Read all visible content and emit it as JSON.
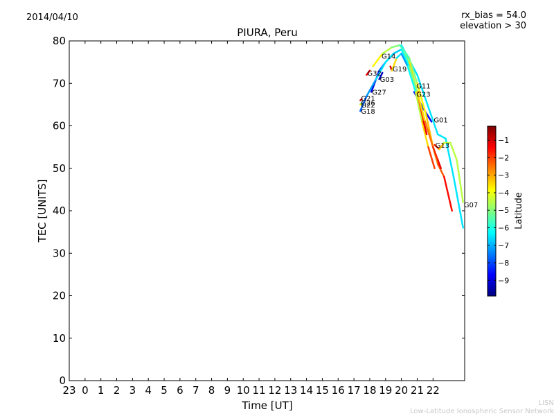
{
  "header": {
    "date": "2014/04/10",
    "rx_bias": "rx_bias = 54.0",
    "elevation": "elevation > 30"
  },
  "credit": {
    "line1": "LISN",
    "line2": "Low-Latitude Ionospheric Sensor Network"
  },
  "chart_data": {
    "type": "line",
    "title": "PIURA, Peru",
    "xlabel": "Time [UT]",
    "ylabel": "TEC [UNITS]",
    "xlim": [
      -1,
      24
    ],
    "ylim": [
      0,
      80
    ],
    "x_ticks": [
      -1,
      0,
      1,
      2,
      3,
      4,
      5,
      6,
      7,
      8,
      9,
      10,
      11,
      12,
      13,
      14,
      15,
      16,
      17,
      18,
      19,
      20,
      21,
      22
    ],
    "x_tick_labels": [
      "23",
      "0",
      "1",
      "2",
      "3",
      "4",
      "5",
      "6",
      "7",
      "8",
      "9",
      "10",
      "11",
      "12",
      "13",
      "14",
      "15",
      "16",
      "17",
      "18",
      "19",
      "20",
      "21",
      "22"
    ],
    "y_ticks": [
      0,
      10,
      20,
      30,
      40,
      50,
      60,
      70,
      80
    ],
    "colorbar": {
      "label": "Latitude",
      "range": [
        -9.9,
        -0.2
      ],
      "ticks": [
        -1,
        -2,
        -3,
        -4,
        -5,
        -6,
        -7,
        -8,
        -9
      ],
      "tick_labels": [
        "−1",
        "−2",
        "−3",
        "−4",
        "−5",
        "−6",
        "−7",
        "−8",
        "−9"
      ],
      "colors": [
        "#00007f",
        "#0000ff",
        "#0080ff",
        "#00ffff",
        "#80ff80",
        "#ffff00",
        "#ff8000",
        "#ff0000",
        "#7f0000"
      ]
    },
    "series": [
      {
        "name": "G01",
        "label_at": [
          22.0,
          61.5
        ],
        "points": [
          [
            20.8,
            68,
            -8.0
          ],
          [
            21.4,
            64,
            -8.5
          ],
          [
            21.9,
            61,
            -9.0
          ]
        ]
      },
      {
        "name": "G07",
        "label_at": [
          23.9,
          41.5
        ],
        "points": [
          [
            20.0,
            79,
            -6.5
          ],
          [
            21.0,
            72,
            -6.5
          ],
          [
            22.3,
            58,
            -6.5
          ],
          [
            22.8,
            57,
            -6.5
          ],
          [
            23.3,
            48,
            -6.5
          ],
          [
            23.9,
            36,
            -6.5
          ]
        ]
      },
      {
        "name": "G13",
        "label_at": [
          22.1,
          55.5
        ],
        "points": [
          [
            22.1,
            55.5,
            -1.6
          ],
          [
            22.4,
            54.5,
            -2.0
          ],
          [
            22.7,
            56,
            -4.5
          ],
          [
            23.1,
            56,
            -4.5
          ],
          [
            23.5,
            52,
            -4.5
          ],
          [
            23.9,
            42,
            -4.5
          ]
        ]
      },
      {
        "name": "G11",
        "label_at": [
          20.9,
          69.5
        ],
        "points": [
          [
            20.5,
            73,
            -8.5
          ],
          [
            20.9,
            69.5,
            -8.0
          ]
        ]
      },
      {
        "name": "G23",
        "label_at": [
          20.9,
          67.5
        ],
        "points": [
          [
            20.9,
            67.5,
            -1.0
          ],
          [
            21.1,
            68,
            -1.0
          ]
        ]
      },
      {
        "name": "G14",
        "label_at": [
          18.7,
          76.5
        ],
        "points": [
          [
            18.2,
            74,
            -3.5
          ],
          [
            18.8,
            77,
            -4.0
          ],
          [
            19.4,
            78.5,
            -5.0
          ],
          [
            19.9,
            79,
            -5.0
          ],
          [
            20.5,
            76,
            -6.0
          ],
          [
            21.0,
            70,
            -4.0
          ],
          [
            21.6,
            62,
            -3.5
          ],
          [
            22.0,
            55,
            -3.0
          ],
          [
            22.3,
            51,
            -2.5
          ],
          [
            22.7,
            48,
            -2.0
          ],
          [
            23.2,
            40,
            -1.0
          ]
        ]
      },
      {
        "name": "G19",
        "label_at": [
          19.4,
          73.5
        ],
        "points": [
          [
            19.3,
            74,
            -1.0
          ],
          [
            19.4,
            73,
            -1.0
          ],
          [
            19.7,
            76,
            -6.0
          ],
          [
            20.0,
            77,
            -7.0
          ],
          [
            20.4,
            74,
            -7.5
          ],
          [
            20.9,
            68,
            -5.0
          ],
          [
            21.3,
            61,
            -4.0
          ],
          [
            21.7,
            55,
            -3.0
          ],
          [
            22.1,
            50,
            -1.0
          ]
        ]
      },
      {
        "name": "G32",
        "label_at": [
          17.8,
          72.5
        ],
        "points": [
          [
            17.8,
            72,
            -1.0
          ],
          [
            18.0,
            73,
            -1.5
          ]
        ]
      },
      {
        "name": "G03",
        "label_at": [
          18.6,
          71
        ],
        "points": [
          [
            18.6,
            71,
            -9.0
          ],
          [
            18.8,
            72.5,
            -9.5
          ]
        ]
      },
      {
        "name": "G27",
        "label_at": [
          18.1,
          68
        ],
        "points": [
          [
            18.1,
            68,
            -9.5
          ],
          [
            18.6,
            73,
            -8.5
          ],
          [
            19.0,
            75,
            -7.0
          ],
          [
            19.5,
            77,
            -6.0
          ],
          [
            20.0,
            78,
            -5.5
          ],
          [
            20.5,
            75,
            -4.5
          ],
          [
            21.0,
            68,
            -2.5
          ],
          [
            21.4,
            61,
            -1.5
          ],
          [
            21.6,
            58,
            -1.0
          ]
        ]
      },
      {
        "name": "G21",
        "label_at": [
          17.4,
          66.5
        ],
        "points": [
          [
            17.4,
            66,
            -1.0
          ],
          [
            17.5,
            66.3,
            -1.0
          ]
        ]
      },
      {
        "name": "G26",
        "label_at": [
          17.4,
          65.5
        ],
        "points": [
          [
            17.4,
            65,
            -7.0
          ],
          [
            17.5,
            65.4,
            -7.0
          ]
        ]
      },
      {
        "name": "G22",
        "label_at": [
          17.4,
          65
        ],
        "points": [
          [
            17.4,
            65,
            -4.0
          ],
          [
            17.5,
            65.2,
            -4.0
          ]
        ]
      },
      {
        "name": "G18",
        "label_at": [
          17.4,
          63.5
        ],
        "points": [
          [
            17.4,
            63.5,
            -8.0
          ],
          [
            17.8,
            67,
            -7.5
          ],
          [
            18.4,
            71,
            -7.0
          ],
          [
            19.0,
            75,
            -6.0
          ],
          [
            19.5,
            77,
            -7.0
          ],
          [
            20.0,
            78,
            -6.5
          ],
          [
            20.5,
            74,
            -6.0
          ],
          [
            21.0,
            68,
            -4.0
          ],
          [
            21.5,
            61,
            -3.0
          ],
          [
            22.0,
            55,
            -2.0
          ],
          [
            22.3,
            52,
            -1.5
          ],
          [
            22.5,
            50,
            -1.0
          ]
        ]
      }
    ]
  }
}
